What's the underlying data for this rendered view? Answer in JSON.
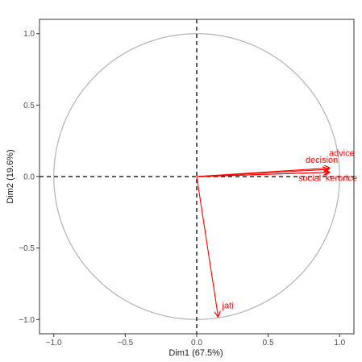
{
  "chart_data": {
    "type": "scatter",
    "title": "",
    "xlabel": "Dim1 (67.5%)",
    "ylabel": "Dim2 (19.6%)",
    "xlim": [
      -1.1,
      1.1
    ],
    "ylim": [
      -1.1,
      1.1
    ],
    "x_ticks": [
      -1.0,
      -0.5,
      0.0,
      0.5,
      1.0
    ],
    "y_ticks": [
      -1.0,
      -0.5,
      0.0,
      0.5,
      1.0
    ],
    "x_tick_labels": [
      "−1.0",
      "−0.5",
      "0.0",
      "0.5",
      "1.0"
    ],
    "y_tick_labels": [
      "−1.0",
      "−0.5",
      "0.0",
      "0.5",
      "1.0"
    ],
    "grid": false,
    "unit_circle": true,
    "reference_lines": [
      0,
      0
    ],
    "colors": {
      "arrows": "#ff0000",
      "circle": "#b3b3b3",
      "axes": "#000000"
    },
    "variables": [
      {
        "name": "advice",
        "x": 0.93,
        "y": 0.06
      },
      {
        "name": "decision",
        "x": 0.92,
        "y": 0.05
      },
      {
        "name": "social",
        "x": 0.92,
        "y": 0.03
      },
      {
        "name": "kerorice",
        "x": 0.93,
        "y": 0.03
      },
      {
        "name": "jati",
        "x": 0.15,
        "y": -0.98
      }
    ]
  }
}
